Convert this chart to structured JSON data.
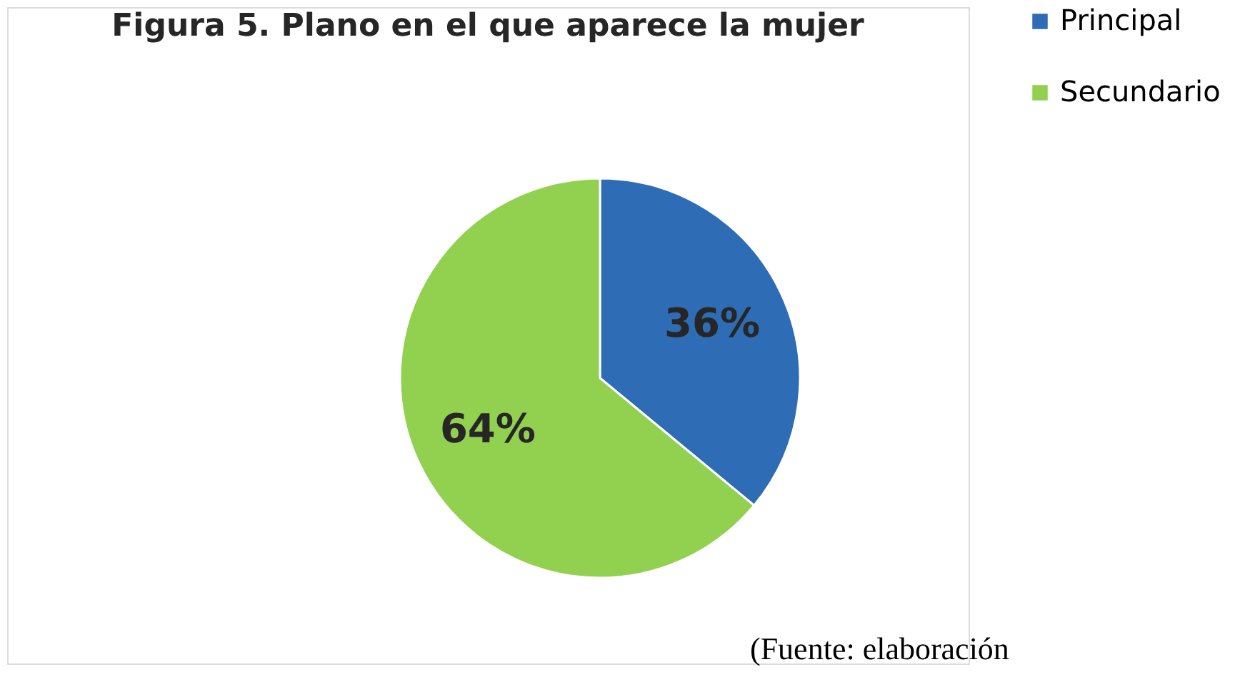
{
  "chart_data": {
    "type": "pie",
    "title": "Figura 5. Plano en el que aparece la mujer",
    "categories": [
      "Principal",
      "Secundario"
    ],
    "values": [
      36,
      64
    ],
    "colors": [
      "#2e6cb5",
      "#92d050"
    ],
    "value_labels": [
      "36%",
      "64%"
    ],
    "legend": "right",
    "annotations": [
      "(Fuente: elaboración"
    ]
  }
}
